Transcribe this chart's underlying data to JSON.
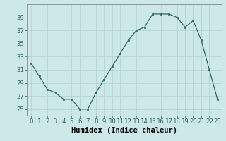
{
  "x": [
    0,
    1,
    2,
    3,
    4,
    5,
    6,
    7,
    8,
    9,
    10,
    11,
    12,
    13,
    14,
    15,
    16,
    17,
    18,
    19,
    20,
    21,
    22,
    23
  ],
  "y": [
    32,
    30,
    28,
    27.5,
    26.5,
    26.5,
    25,
    25,
    27.5,
    29.5,
    31.5,
    33.5,
    35.5,
    37,
    37.5,
    39.5,
    39.5,
    39.5,
    39,
    37.5,
    38.5,
    35.5,
    31,
    26.5
  ],
  "xlabel": "Humidex (Indice chaleur)",
  "ylim": [
    24,
    41
  ],
  "xlim": [
    -0.5,
    23.5
  ],
  "yticks": [
    25,
    27,
    29,
    31,
    33,
    35,
    37,
    39
  ],
  "xticks": [
    0,
    1,
    2,
    3,
    4,
    5,
    6,
    7,
    8,
    9,
    10,
    11,
    12,
    13,
    14,
    15,
    16,
    17,
    18,
    19,
    20,
    21,
    22,
    23
  ],
  "line_color": "#2e6b5e",
  "marker_color": "#2e6b5e",
  "bg_color": "#cce8e8",
  "grid_color": "#b0d0d0",
  "xlabel_fontsize": 7.5,
  "tick_fontsize": 6.5
}
